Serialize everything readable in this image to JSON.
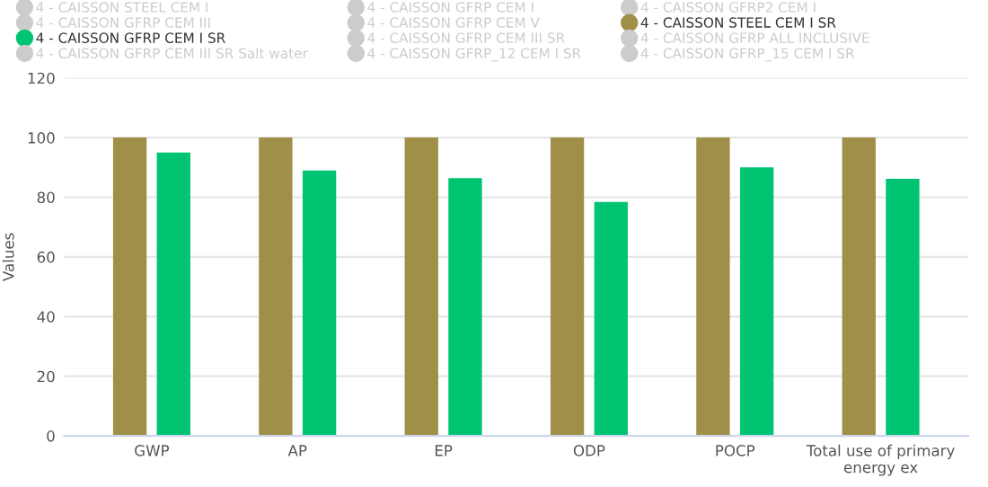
{
  "chart_data": {
    "type": "bar",
    "ylabel": "Values",
    "categories": [
      "GWP",
      "AP",
      "EP",
      "ODP",
      "POCP",
      "Total use of primary\nenergy ex"
    ],
    "series": [
      {
        "name": "4 - CAISSON STEEL CEM I",
        "color": "#cccccc",
        "values": [
          null,
          null,
          null,
          null,
          null,
          null
        ]
      },
      {
        "name": "4 - CAISSON GFRP CEM I",
        "color": "#cccccc",
        "values": [
          null,
          null,
          null,
          null,
          null,
          null
        ]
      },
      {
        "name": "4 - CAISSON GFRP2 CEM I",
        "color": "#cccccc",
        "values": [
          null,
          null,
          null,
          null,
          null,
          null
        ]
      },
      {
        "name": "4 - CAISSON GFRP CEM III",
        "color": "#cccccc",
        "values": [
          null,
          null,
          null,
          null,
          null,
          null
        ]
      },
      {
        "name": "4 - CAISSON GFRP CEM V",
        "color": "#cccccc",
        "values": [
          null,
          null,
          null,
          null,
          null,
          null
        ]
      },
      {
        "name": "4 - CAISSON STEEL CEM I SR",
        "color": "#a08f48",
        "values": [
          100,
          100,
          100,
          100,
          100,
          100
        ]
      },
      {
        "name": "4 - CAISSON GFRP CEM I SR",
        "color": "#00c472",
        "values": [
          95,
          89,
          86.4,
          78.4,
          90,
          86.2
        ]
      },
      {
        "name": "4 - CAISSON GFRP CEM III SR",
        "color": "#cccccc",
        "values": [
          null,
          null,
          null,
          null,
          null,
          null
        ]
      },
      {
        "name": "4 - CAISSON GFRP ALL INCLUSIVE",
        "color": "#cccccc",
        "values": [
          null,
          null,
          null,
          null,
          null,
          null
        ]
      },
      {
        "name": "4 - CAISSON GFRP CEM III SR Salt water",
        "color": "#cccccc",
        "values": [
          null,
          null,
          null,
          null,
          null,
          null
        ]
      },
      {
        "name": "4 - CAISSON GFRP_12 CEM I SR",
        "color": "#cccccc",
        "values": [
          null,
          null,
          null,
          null,
          null,
          null
        ]
      },
      {
        "name": "4 - CAISSON GFRP_15 CEM I SR",
        "color": "#cccccc",
        "values": [
          null,
          null,
          null,
          null,
          null,
          null
        ]
      }
    ],
    "ylim": [
      0,
      120
    ],
    "yticks": [
      0,
      20,
      40,
      60,
      80,
      100,
      120
    ],
    "grid": "y",
    "legend": "top"
  }
}
